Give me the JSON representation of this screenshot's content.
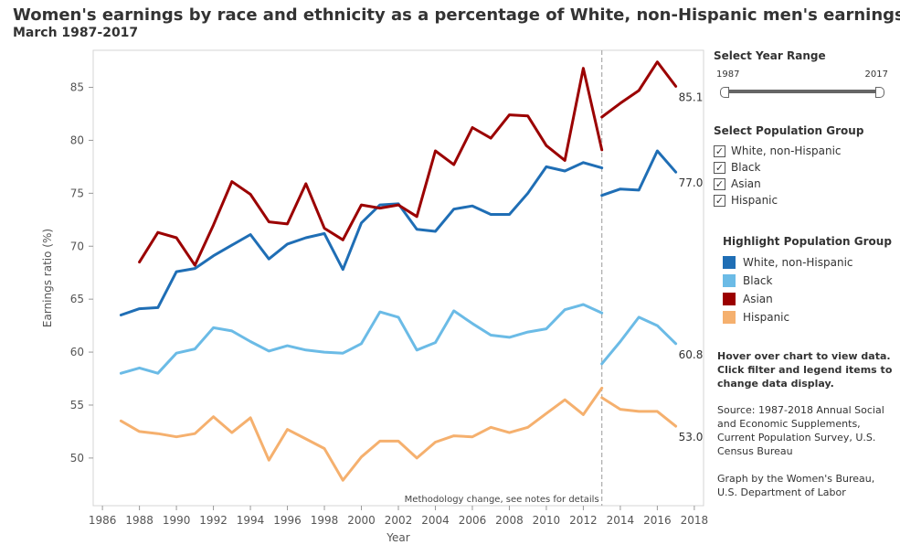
{
  "header": {
    "title": "Women's earnings by race and ethnicity as a percentage of White, non-Hispanic men's earnings",
    "subtitle": "March 1987-2017"
  },
  "year_range": {
    "heading": "Select Year Range",
    "start_label": "1987",
    "end_label": "2017",
    "start_value": 1987,
    "end_value": 2017
  },
  "population_filter": {
    "heading": "Select Population Group",
    "items": [
      {
        "label": "White, non-Hispanic",
        "checked": true
      },
      {
        "label": "Black",
        "checked": true
      },
      {
        "label": "Asian",
        "checked": true
      },
      {
        "label": "Hispanic",
        "checked": true
      }
    ]
  },
  "highlight_legend": {
    "heading": "Highlight Population Group",
    "items": [
      {
        "label": "White, non-Hispanic",
        "color": "#1f6eb5"
      },
      {
        "label": "Black",
        "color": "#6bbbe6"
      },
      {
        "label": "Asian",
        "color": "#9b0000"
      },
      {
        "label": "Hispanic",
        "color": "#f5b06e"
      }
    ]
  },
  "notes": {
    "hover": "Hover over chart to view data. Click filter and legend items to change data display.",
    "source": "Source: 1987-2018 Annual Social and Economic Supplements, Current Population Survey, U.S. Census Bureau",
    "credit": "Graph by the Women's Bureau, U.S. Department of Labor"
  },
  "chart_data": {
    "type": "line",
    "title": "Women's earnings by race and ethnicity as a percentage of White, non-Hispanic men's earnings",
    "subtitle": "March 1987-2017",
    "xlabel": "Year",
    "ylabel": "Earnings ratio (%)",
    "xlim": [
      1985.5,
      2018.5
    ],
    "ylim": [
      45.5,
      88.5
    ],
    "xticks": [
      1986,
      1988,
      1990,
      1992,
      1994,
      1996,
      1998,
      2000,
      2002,
      2004,
      2006,
      2008,
      2010,
      2012,
      2014,
      2016,
      2018
    ],
    "yticks": [
      50,
      55,
      60,
      65,
      70,
      75,
      80,
      85
    ],
    "grid": false,
    "annotation": {
      "x": 2013,
      "text": "Methodology change, see notes for details"
    },
    "series": [
      {
        "name": "White, non-Hispanic",
        "color": "#1f6eb5",
        "end_label": "77.0",
        "segments": [
          {
            "x": [
              1987,
              1988,
              1989,
              1990,
              1991,
              1992,
              1993,
              1994,
              1995,
              1996,
              1997,
              1998,
              1999,
              2000,
              2001,
              2002,
              2003,
              2004,
              2005,
              2006,
              2007,
              2008,
              2009,
              2010,
              2011,
              2012,
              2013
            ],
            "y": [
              63.5,
              64.1,
              64.2,
              67.6,
              67.9,
              69.1,
              70.1,
              71.1,
              68.8,
              70.2,
              70.8,
              71.2,
              67.8,
              72.2,
              73.9,
              74.0,
              71.6,
              71.4,
              73.5,
              73.8,
              73.0,
              73.0,
              75.0,
              77.5,
              77.1,
              77.9,
              77.4
            ]
          },
          {
            "x": [
              2013,
              2014,
              2015,
              2016,
              2017
            ],
            "y": [
              74.8,
              75.4,
              75.3,
              79.0,
              77.0
            ]
          }
        ]
      },
      {
        "name": "Black",
        "color": "#6bbbe6",
        "end_label": "60.8",
        "segments": [
          {
            "x": [
              1987,
              1988,
              1989,
              1990,
              1991,
              1992,
              1993,
              1994,
              1995,
              1996,
              1997,
              1998,
              1999,
              2000,
              2001,
              2002,
              2003,
              2004,
              2005,
              2006,
              2007,
              2008,
              2009,
              2010,
              2011,
              2012,
              2013
            ],
            "y": [
              58.0,
              58.5,
              58.0,
              59.9,
              60.3,
              62.3,
              62.0,
              61.0,
              60.1,
              60.6,
              60.2,
              60.0,
              59.9,
              60.8,
              63.8,
              63.3,
              60.2,
              60.9,
              63.9,
              62.7,
              61.6,
              61.4,
              61.9,
              62.2,
              64.0,
              64.5,
              63.7
            ]
          },
          {
            "x": [
              2013,
              2014,
              2015,
              2016,
              2017
            ],
            "y": [
              58.9,
              61.0,
              63.3,
              62.5,
              60.8
            ]
          }
        ]
      },
      {
        "name": "Asian",
        "color": "#9b0000",
        "end_label": "85.1",
        "segments": [
          {
            "x": [
              1988,
              1989,
              1990,
              1991,
              1992,
              1993,
              1994,
              1995,
              1996,
              1997,
              1998,
              1999,
              2000,
              2001,
              2002,
              2003,
              2004,
              2005,
              2006,
              2007,
              2008,
              2009,
              2010,
              2011,
              2012,
              2013
            ],
            "y": [
              68.5,
              71.3,
              70.8,
              68.2,
              72.0,
              76.1,
              74.9,
              72.3,
              72.1,
              75.9,
              71.7,
              70.6,
              73.9,
              73.6,
              73.9,
              72.8,
              79.0,
              77.7,
              81.2,
              80.2,
              82.4,
              82.3,
              79.5,
              78.1,
              86.8,
              79.1
            ]
          },
          {
            "x": [
              2013,
              2014,
              2015,
              2016,
              2017
            ],
            "y": [
              82.2,
              83.5,
              84.7,
              87.4,
              85.1
            ]
          }
        ]
      },
      {
        "name": "Hispanic",
        "color": "#f5b06e",
        "end_label": "53.0",
        "segments": [
          {
            "x": [
              1987,
              1988,
              1989,
              1990,
              1991,
              1992,
              1993,
              1994,
              1995,
              1996,
              1997,
              1998,
              1999,
              2000,
              2001,
              2002,
              2003,
              2004,
              2005,
              2006,
              2007,
              2008,
              2009,
              2010,
              2011,
              2012,
              2013
            ],
            "y": [
              53.5,
              52.5,
              52.3,
              52.0,
              52.3,
              53.9,
              52.4,
              53.8,
              49.8,
              52.7,
              51.8,
              50.9,
              47.9,
              50.1,
              51.6,
              51.6,
              50.0,
              51.5,
              52.1,
              52.0,
              52.9,
              52.4,
              52.9,
              54.2,
              55.5,
              54.1,
              56.6
            ]
          },
          {
            "x": [
              2013,
              2014,
              2015,
              2016,
              2017
            ],
            "y": [
              55.7,
              54.6,
              54.4,
              54.4,
              53.0
            ]
          }
        ]
      }
    ]
  }
}
